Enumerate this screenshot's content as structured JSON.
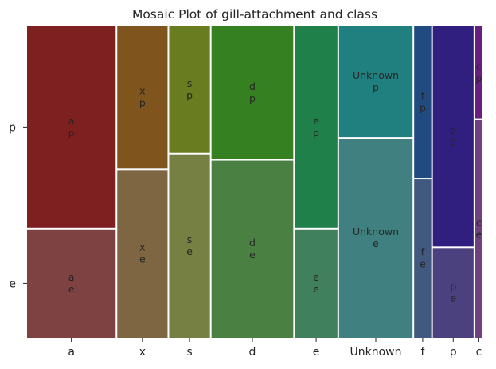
{
  "chart_data": {
    "type": "mosaic",
    "title": "Mosaic Plot of gill-attachment and class",
    "xlabel": "",
    "ylabel": "",
    "x_categories": [
      "a",
      "x",
      "s",
      "d",
      "e",
      "Unknown",
      "f",
      "p",
      "c"
    ],
    "y_categories": [
      "e",
      "p"
    ],
    "column_widths": [
      0.198,
      0.114,
      0.093,
      0.183,
      0.097,
      0.165,
      0.041,
      0.093,
      0.016
    ],
    "p_fraction": [
      0.65,
      0.46,
      0.41,
      0.43,
      0.65,
      0.36,
      0.49,
      0.71,
      0.3
    ],
    "colors_p": [
      "#7f2020",
      "#7f541d",
      "#697c1f",
      "#358020",
      "#20804a",
      "#208080",
      "#214a80",
      "#311f80",
      "#6a1f80"
    ],
    "colors_e": [
      "#7f4242",
      "#7f6642",
      "#768042",
      "#4a8142",
      "#41805c",
      "#418080",
      "#41597f",
      "#4b417f",
      "#6f417f"
    ],
    "cell_labels": {
      "a": {
        "p": "a\np",
        "e": "a\ne"
      },
      "x": {
        "p": "x\np",
        "e": "x\ne"
      },
      "s": {
        "p": "s\np",
        "e": "s\ne"
      },
      "d": {
        "p": "d\np",
        "e": "d\ne"
      },
      "e": {
        "p": "e\np",
        "e": "e\ne"
      },
      "Unknown": {
        "p": "Unknown\np",
        "e": "Unknown\ne"
      },
      "f": {
        "p": "f\np",
        "e": "f\ne"
      },
      "p": {
        "p": "p\np",
        "e": "p\ne"
      },
      "c": {
        "p": "c\np",
        "e": "c\ne"
      }
    },
    "grid": false,
    "legend": "none"
  }
}
